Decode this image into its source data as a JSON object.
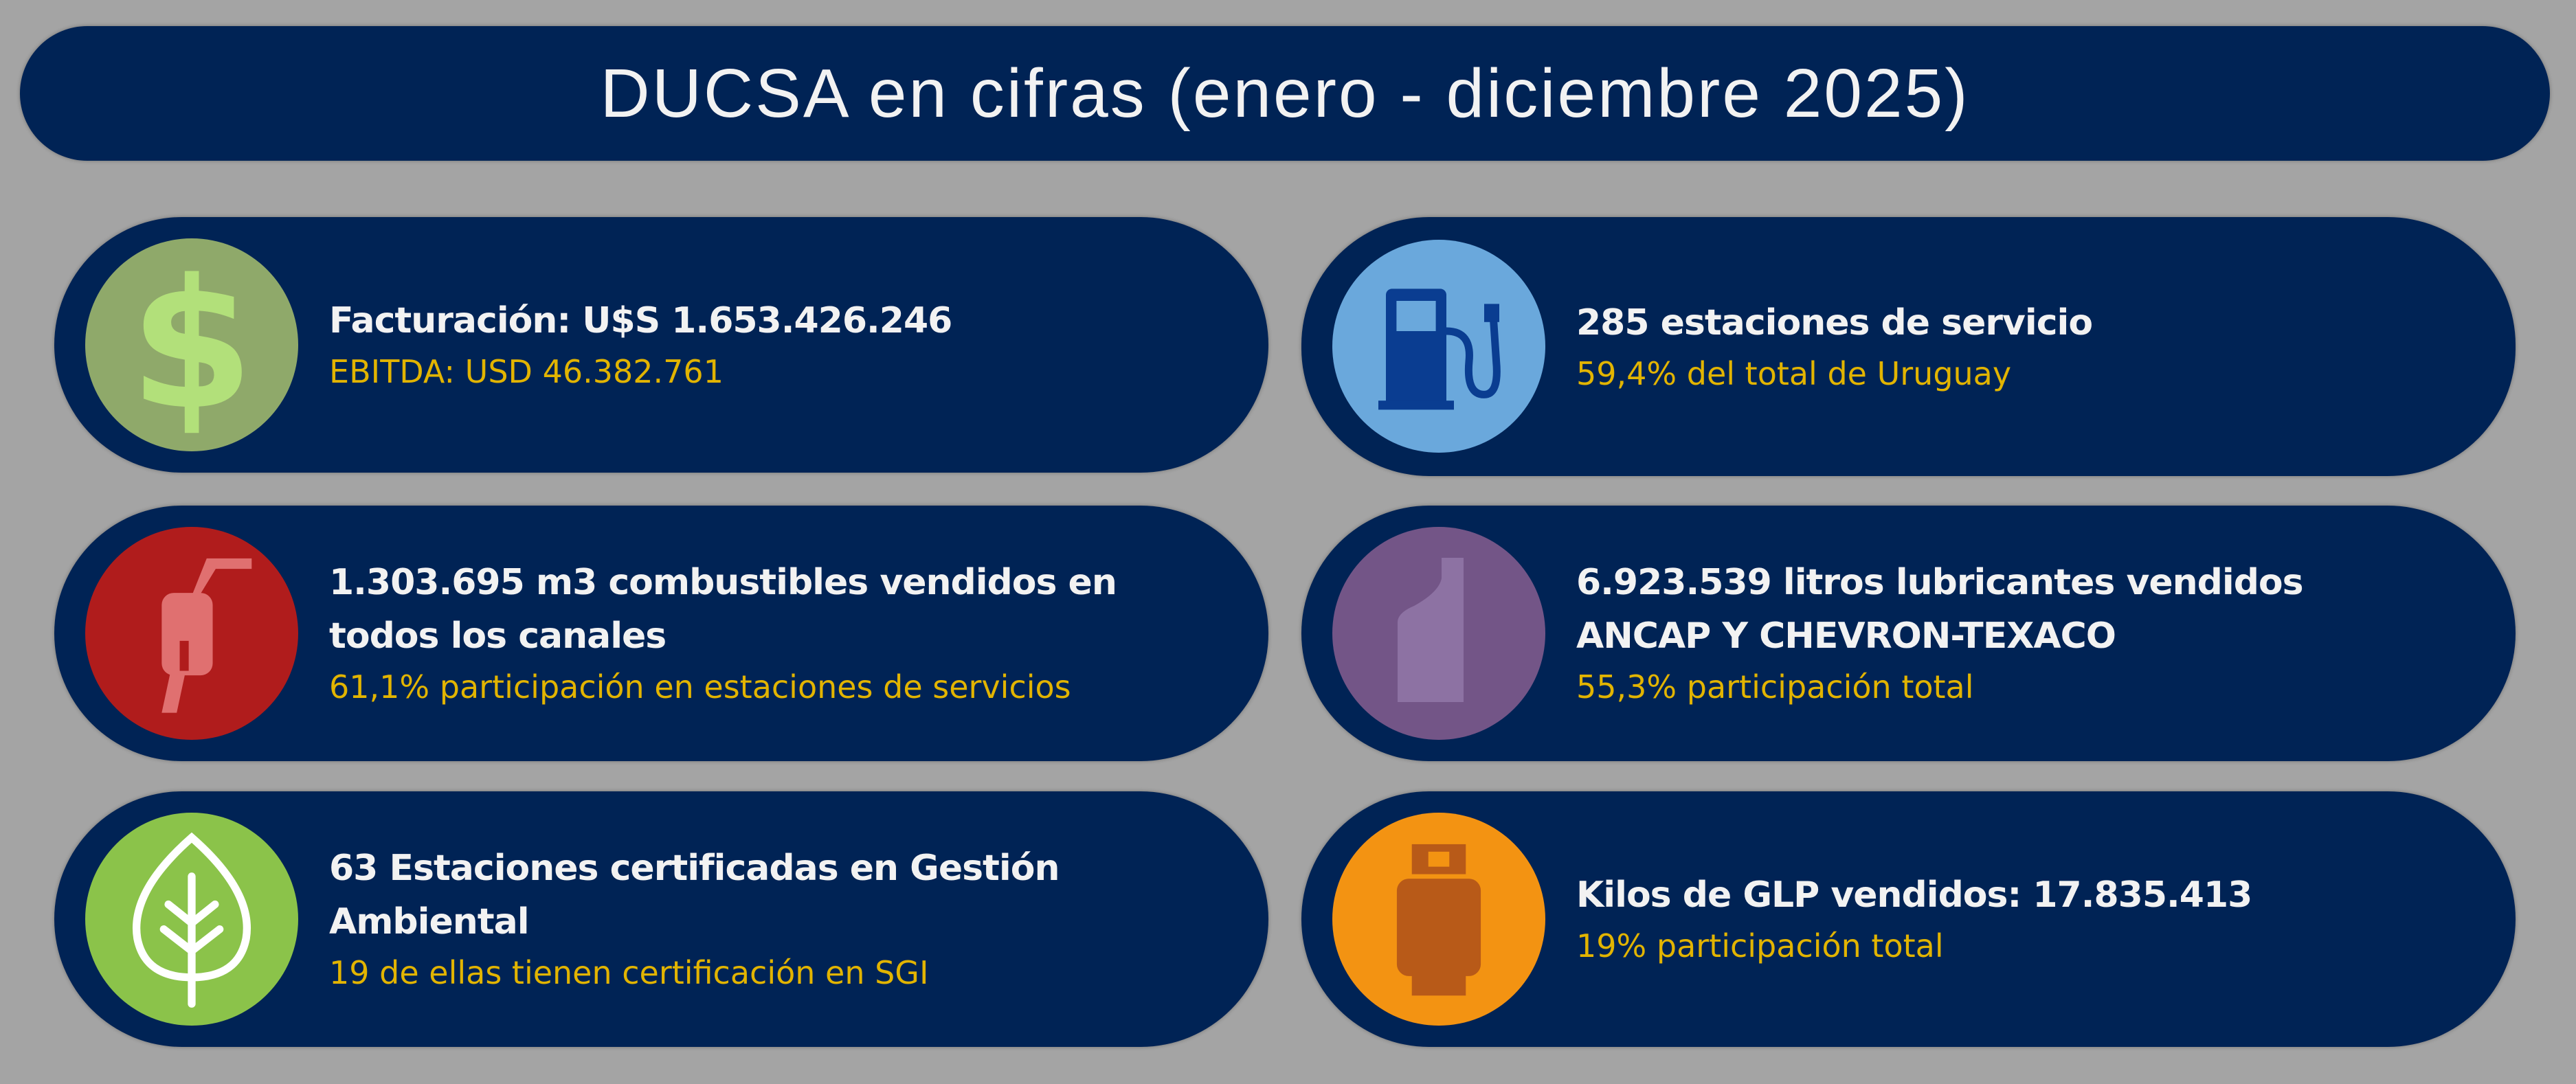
{
  "title": "DUCSA en cifras (enero - diciembre 2025)",
  "colors": {
    "background": "#a4a4a4",
    "card": "#002355",
    "main_text": "#f2f2f2",
    "accent_text": "#e2b400"
  },
  "cards": [
    {
      "icon": "dollar-icon",
      "circle_color": "#8fa96a",
      "main": "Facturación: U$S 1.653.426.246",
      "sub": "EBITDA: USD 46.382.761"
    },
    {
      "icon": "gas-station-icon",
      "circle_color": "#6aa8dc",
      "main": "285 estaciones de servicio",
      "sub": "59,4% del total de Uruguay"
    },
    {
      "icon": "fuel-nozzle-icon",
      "circle_color": "#b01c1c",
      "main": "1.303.695 m3 combustibles vendidos en todos los canales",
      "sub": "61,1% participación en estaciones de servicios"
    },
    {
      "icon": "lubricant-bottle-icon",
      "circle_color": "#735587",
      "main": "6.923.539 litros lubricantes vendidos ANCAP Y CHEVRON-TEXACO",
      "sub": "55,3% participación total"
    },
    {
      "icon": "leaf-icon",
      "circle_color": "#8bc34a",
      "main": "63 Estaciones certificadas en Gestión Ambiental",
      "sub": "19 de ellas tienen certificación en SGI"
    },
    {
      "icon": "gas-cylinder-icon",
      "circle_color": "#f39312",
      "main": "Kilos de GLP vendidos: 17.835.413",
      "sub": "19% participación total"
    }
  ]
}
